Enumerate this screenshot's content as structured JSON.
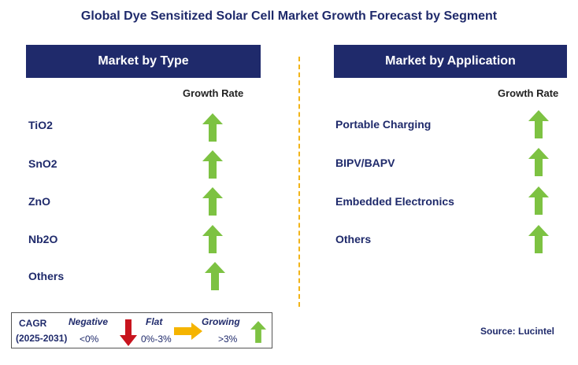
{
  "title": "Global Dye Sensitized Solar Cell Market Growth Forecast by Segment",
  "left_panel": {
    "header": "Market by Type",
    "column_header": "Growth Rate",
    "rows": [
      {
        "label": "TiO2",
        "trend": "growing"
      },
      {
        "label": "SnO2",
        "trend": "growing"
      },
      {
        "label": "ZnO",
        "trend": "growing"
      },
      {
        "label": "Nb2O",
        "trend": "growing"
      },
      {
        "label": "Others",
        "trend": "growing"
      }
    ]
  },
  "right_panel": {
    "header": "Market by Application",
    "column_header": "Growth Rate",
    "rows": [
      {
        "label": "Portable Charging",
        "trend": "growing"
      },
      {
        "label": "BIPV/BAPV",
        "trend": "growing"
      },
      {
        "label": "Embedded Electronics",
        "trend": "growing"
      },
      {
        "label": "Others",
        "trend": "growing"
      }
    ]
  },
  "legend": {
    "cagr_label": "CAGR",
    "period": "(2025-2031)",
    "negative_label": "Negative",
    "negative_range": "<0%",
    "flat_label": "Flat",
    "flat_range": "0%-3%",
    "growing_label": "Growing",
    "growing_range": ">3%"
  },
  "source": "Source: Lucintel",
  "colors": {
    "navy": "#1f2a6b",
    "growing": "#7dc242",
    "negative": "#c8141e",
    "flat": "#f5b400",
    "divider": "#f2b418"
  },
  "icons": {
    "growing": "up-arrow-icon",
    "negative": "down-arrow-icon",
    "flat": "right-arrow-icon"
  }
}
